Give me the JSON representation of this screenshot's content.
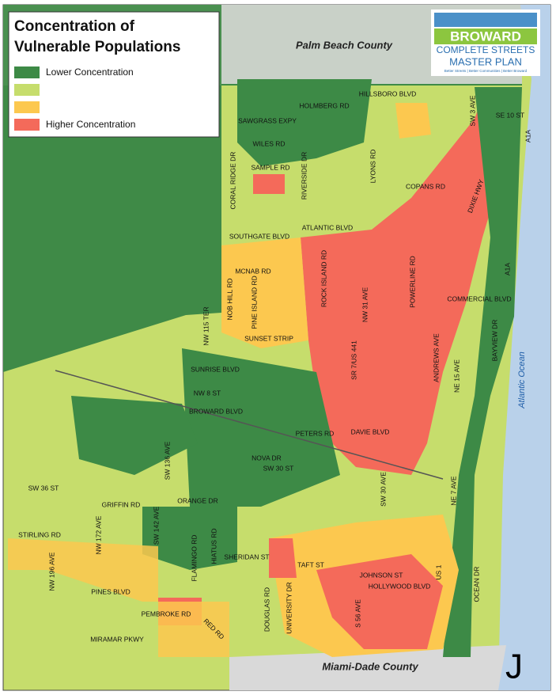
{
  "legend": {
    "title": "Concentration of Vulnerable Populations",
    "items": [
      {
        "label": "Lower Concentration",
        "color": "#3d8a46"
      },
      {
        "color": "#c6dd6c"
      },
      {
        "color": "#fcc84f"
      },
      {
        "label": "Higher Concentration",
        "color": "#f46a5a"
      }
    ]
  },
  "logo": {
    "line1": "BROWARD",
    "line2": "COMPLETE STREETS",
    "line3": "MASTER PLAN",
    "tagline": "Better Streets | Better Communities | Better Broward"
  },
  "map": {
    "north_county": "Palm Beach County",
    "south_county": "Miami-Dade County",
    "water": "Atlantic Ocean",
    "sheet": "J",
    "roads": [
      "HILLSBORO BLVD",
      "HOLMBERG RD",
      "SAWGRASS EXPY",
      "SE 10 ST",
      "WILES RD",
      "SAMPLE RD",
      "CORAL RIDGE DR",
      "RIVERSIDE DR",
      "LYONS RD",
      "COPANS RD",
      "SW 3 AVE",
      "DIXIE HWY",
      "A1A",
      "ATLANTIC BLVD",
      "SOUTHGATE BLVD",
      "MCNAB RD",
      "NOB HILL RD",
      "PINE ISLAND RD",
      "ROCK ISLAND RD",
      "NW 31 AVE",
      "POWERLINE RD",
      "COMMERCIAL BLVD",
      "A1A",
      "NW 115 TER",
      "SUNSET STRIP",
      "SR 7/US 441",
      "ANDREWS AVE",
      "NE 15 AVE",
      "BAYVIEW DR",
      "SUNRISE BLVD",
      "NW 8 ST",
      "BROWARD BLVD",
      "PETERS RD",
      "DAVIE BLVD",
      "NOVA DR",
      "SW 30 ST",
      "SW 136 AVE",
      "SW 36 ST",
      "SW 30 AVE",
      "NE 7 AVE",
      "GRIFFIN RD",
      "ORANGE DR",
      "STIRLING RD",
      "NW 172 AVE",
      "SW 142 AVE",
      "FLAMINGO RD",
      "HIATUS RD",
      "SHERIDAN ST",
      "TAFT ST",
      "JOHNSON ST",
      "HOLLYWOOD BLVD",
      "US 1",
      "OCEAN DR",
      "NW 196 AVE",
      "PINES BLVD",
      "DOUGLAS RD",
      "UNIVERSITY DR",
      "S 56 AVE",
      "PEMBROKE RD",
      "RED RD",
      "MIRAMAR PKWY"
    ]
  }
}
